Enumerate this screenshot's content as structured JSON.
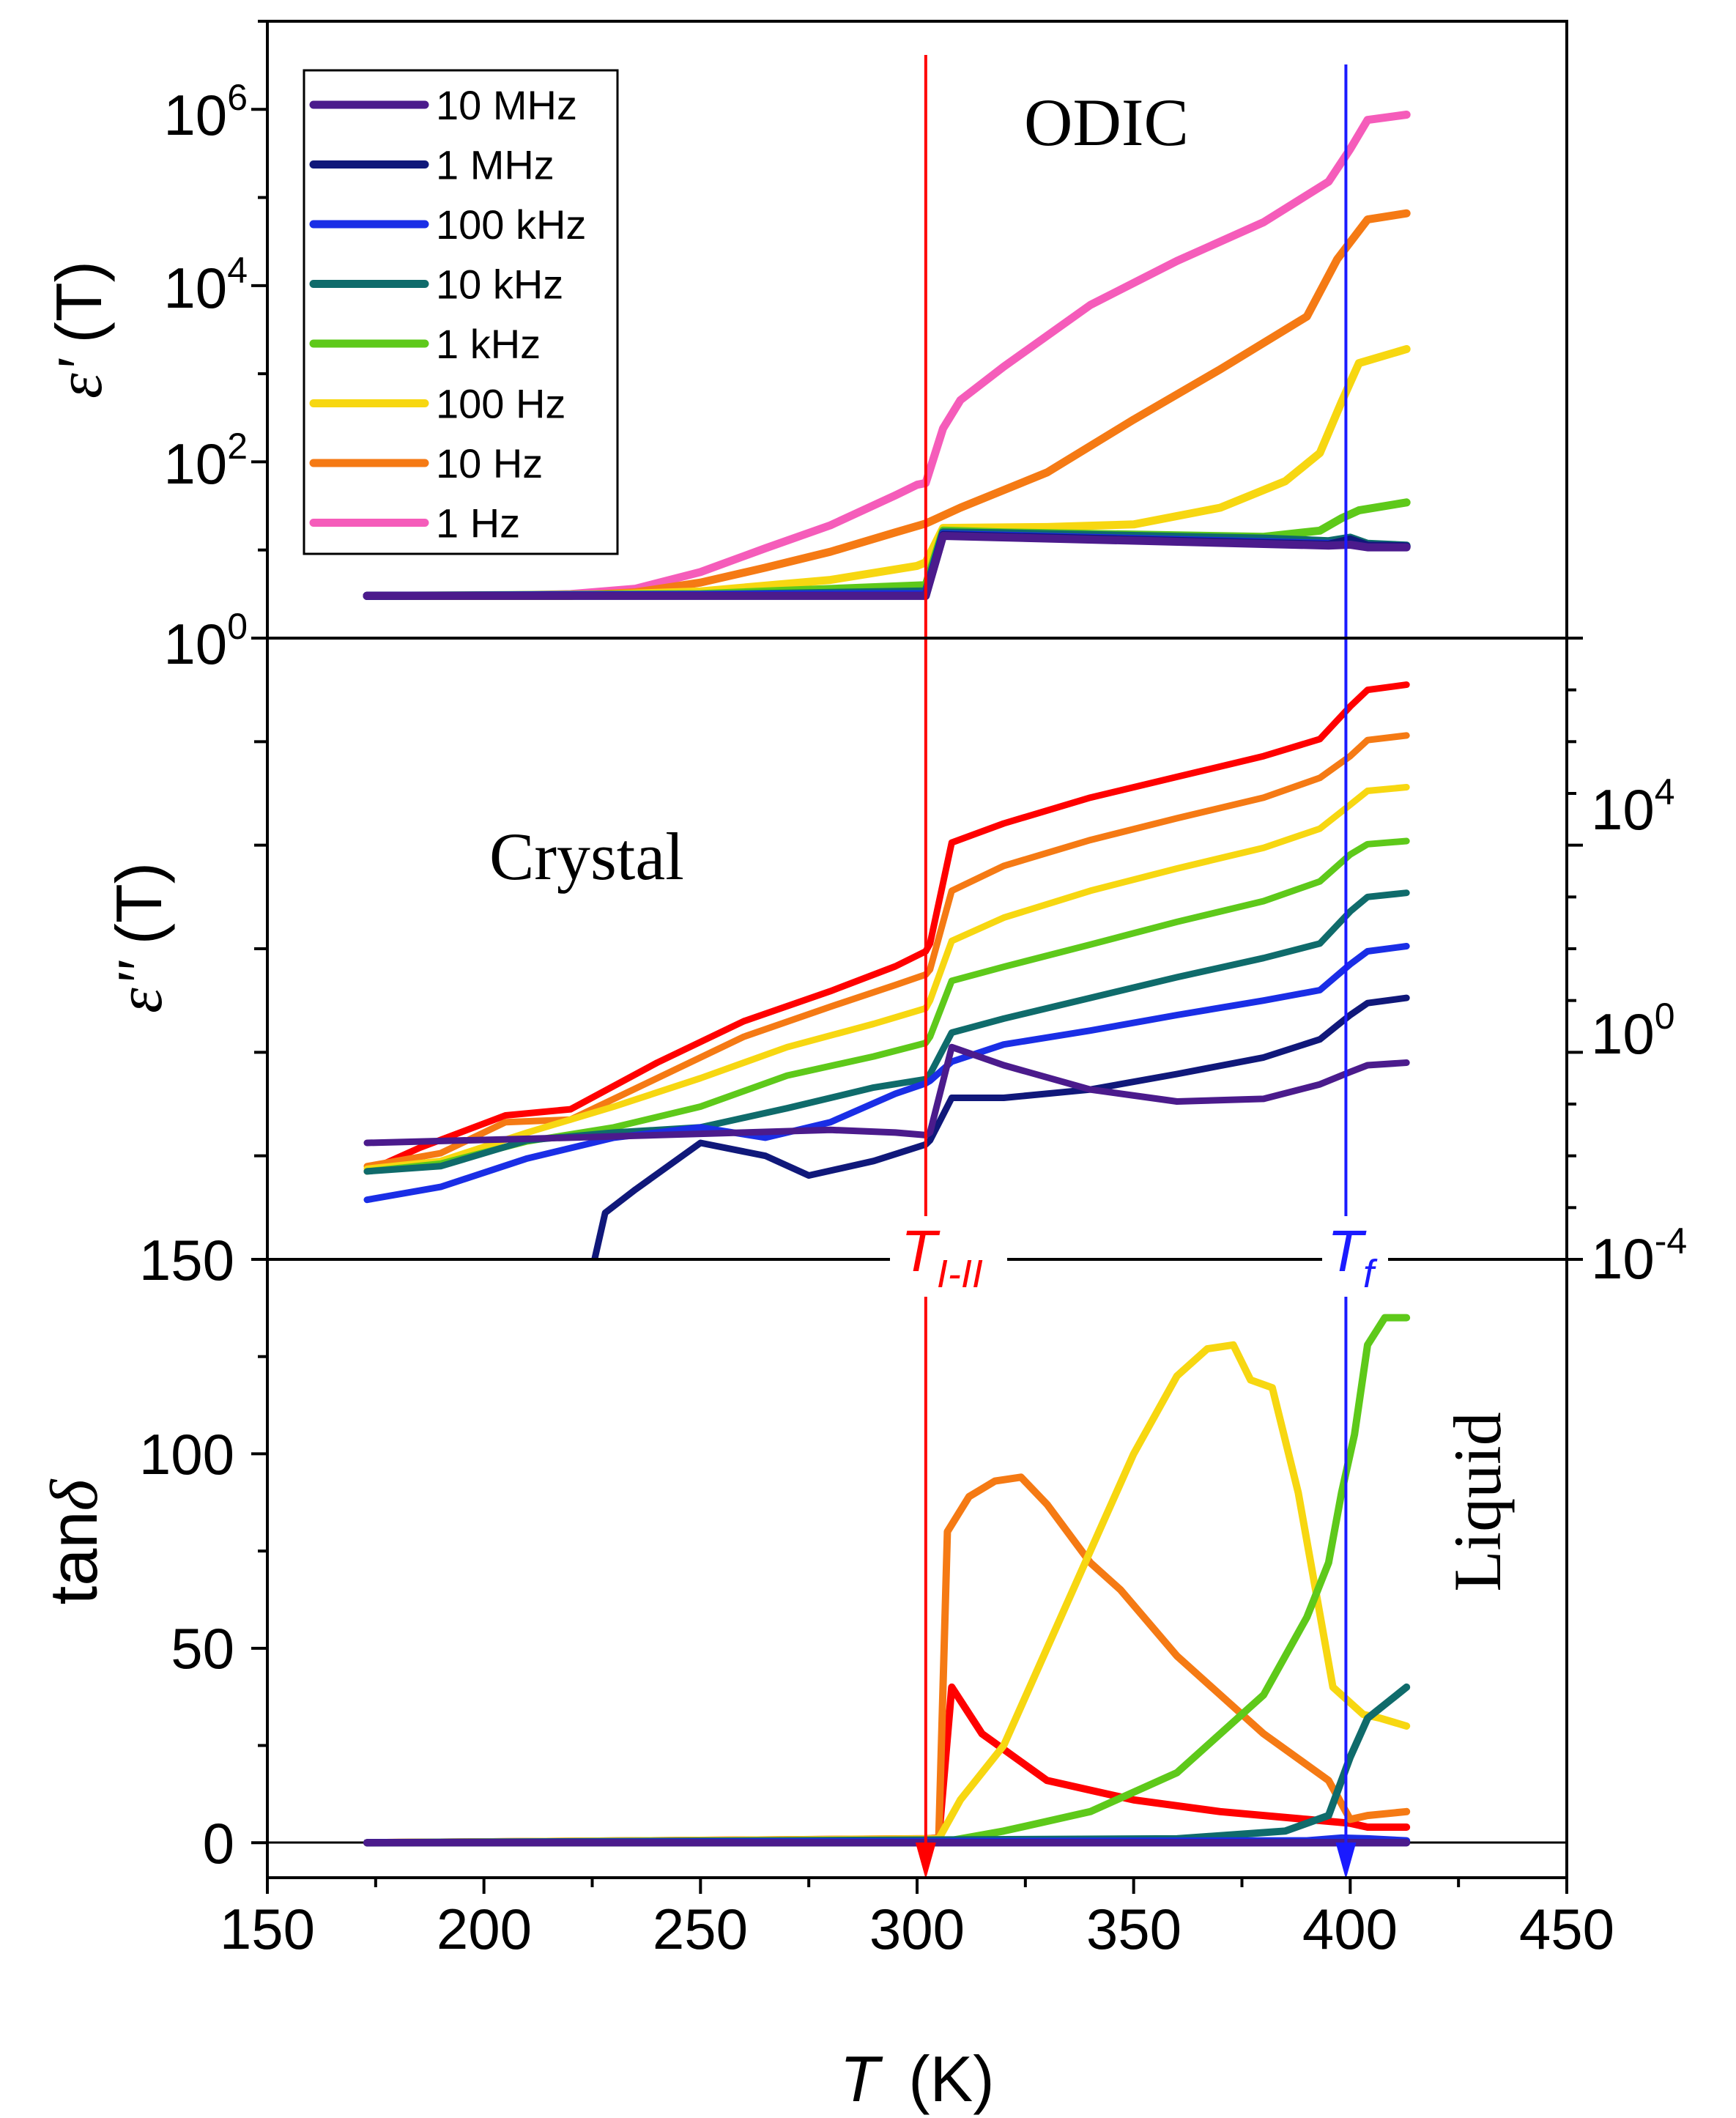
{
  "chart_data": {
    "type": "line",
    "x_axis": {
      "label_symbol": "T",
      "label_unit": "(K)",
      "range": [
        150,
        450
      ],
      "ticks": [
        "150",
        "200",
        "250",
        "300",
        "350",
        "400",
        "450"
      ]
    },
    "colors": {
      "10 MHz": "#4b1b8c",
      "1 MHz": "#10187a",
      "100 kHz": "#1a2ee6",
      "10 kHz": "#0f6b6b",
      "1 kHz": "#5ec91a",
      "100 Hz": "#f7d711",
      "10 Hz": "#f57a14",
      "1 Hz": "#f55cba",
      "eps2_top": "#ff0000",
      "transition_TI_II": "#ff0000",
      "transition_Tf": "#1a1aff"
    },
    "legend": {
      "entries": [
        "10 MHz",
        "1 MHz",
        "100 kHz",
        "10 kHz",
        "1 kHz",
        "100 Hz",
        "10 Hz",
        "1 Hz"
      ],
      "position": "top-left"
    },
    "annotations": {
      "odic": "ODIC",
      "crystal": "Crystal",
      "liquid": "Liquid",
      "t_i_ii_main": "T",
      "t_i_ii_sub": "I-II",
      "t_f_main": "T",
      "t_f_sub": "f"
    },
    "transitions": {
      "T_I_II": 302,
      "T_f": 399
    },
    "panels": [
      {
        "id": "epsilon_prime",
        "ylabel_symbol": "ε'",
        "ylabel_arg": "(T)",
        "yscale": "log",
        "ylim_log10": [
          0,
          7
        ],
        "ytick_labels": [
          {
            "base": "10",
            "exp": "0"
          },
          {
            "base": "10",
            "exp": "2"
          },
          {
            "base": "10",
            "exp": "4"
          },
          {
            "base": "10",
            "exp": "6"
          }
        ],
        "series": [
          {
            "name": "1 Hz",
            "x": [
              173,
              200,
              220,
              235,
              250,
              265,
              280,
              295,
              300,
              302,
              306,
              310,
              320,
              340,
              360,
              380,
              395,
              400,
              404,
              413
            ],
            "log10_y": [
              0.48,
              0.48,
              0.5,
              0.56,
              0.75,
              1.02,
              1.28,
              1.62,
              1.74,
              1.76,
              2.38,
              2.7,
              3.08,
              3.78,
              4.28,
              4.72,
              5.18,
              5.55,
              5.88,
              5.94
            ]
          },
          {
            "name": "10 Hz",
            "x": [
              173,
              220,
              235,
              250,
              265,
              280,
              295,
              302,
              310,
              330,
              350,
              370,
              390,
              397,
              404,
              413
            ],
            "log10_y": [
              0.48,
              0.48,
              0.52,
              0.63,
              0.8,
              0.98,
              1.2,
              1.3,
              1.48,
              1.88,
              2.48,
              3.05,
              3.65,
              4.3,
              4.75,
              4.82
            ]
          },
          {
            "name": "100 Hz",
            "x": [
              173,
              220,
              250,
              280,
              300,
              302,
              306,
              330,
              350,
              370,
              385,
              393,
              398,
              402,
              413
            ],
            "log10_y": [
              0.48,
              0.48,
              0.53,
              0.66,
              0.82,
              0.86,
              1.25,
              1.26,
              1.29,
              1.48,
              1.78,
              2.1,
              2.68,
              3.12,
              3.28
            ]
          },
          {
            "name": "1 kHz",
            "x": [
              173,
              250,
              302,
              306,
              320,
              380,
              393,
              398,
              402,
              413
            ],
            "log10_y": [
              0.48,
              0.5,
              0.6,
              1.22,
              1.2,
              1.15,
              1.22,
              1.36,
              1.45,
              1.54
            ]
          },
          {
            "name": "10 kHz",
            "x": [
              173,
              250,
              302,
              306,
              320,
              380,
              395,
              400,
              404,
              413
            ],
            "log10_y": [
              0.48,
              0.49,
              0.53,
              1.2,
              1.19,
              1.13,
              1.1,
              1.14,
              1.07,
              1.05
            ]
          },
          {
            "name": "100 kHz",
            "x": [
              173,
              302,
              306,
              395,
              400,
              404,
              413
            ],
            "log10_y": [
              0.48,
              0.5,
              1.18,
              1.07,
              1.1,
              1.05,
              1.04
            ]
          },
          {
            "name": "1 MHz",
            "x": [
              173,
              302,
              306,
              395,
              400,
              404,
              413
            ],
            "log10_y": [
              0.48,
              0.48,
              1.17,
              1.06,
              1.12,
              1.05,
              1.04
            ]
          },
          {
            "name": "10 MHz",
            "x": [
              173,
              302,
              306,
              395,
              400,
              404,
              413
            ],
            "log10_y": [
              0.48,
              0.48,
              1.16,
              1.05,
              1.06,
              1.03,
              1.03
            ]
          }
        ]
      },
      {
        "id": "epsilon_double_prime",
        "ylabel_symbol": "ε\"",
        "ylabel_arg": "(T)",
        "yscale": "log",
        "ylim_log10": [
          -4,
          8
        ],
        "ytick_labels": [
          {
            "base": "10",
            "exp": "-4"
          },
          {
            "base": "10",
            "exp": "0"
          },
          {
            "base": "10",
            "exp": "4"
          }
        ],
        "series": [
          {
            "name": "eps2_top",
            "x": [
              173,
              185,
              205,
              220,
              240,
              260,
              280,
              295,
              302,
              303,
              308,
              320,
              340,
              360,
              380,
              393,
              400,
              404,
              413
            ],
            "log10_y": [
              -2.3,
              -1.85,
              -1.22,
              -1.1,
              -0.2,
              0.6,
              1.18,
              1.66,
              1.95,
              2.1,
              4.05,
              4.42,
              4.92,
              5.32,
              5.72,
              6.05,
              6.68,
              7.0,
              7.1
            ]
          },
          {
            "name": "10 Hz",
            "x": [
              173,
              190,
              205,
              220,
              240,
              260,
              280,
              295,
              302,
              303,
              308,
              320,
              340,
              360,
              380,
              393,
              400,
              404,
              413
            ],
            "log10_y": [
              -2.2,
              -1.95,
              -1.35,
              -1.3,
              -0.5,
              0.3,
              0.88,
              1.3,
              1.5,
              1.6,
              3.12,
              3.6,
              4.1,
              4.52,
              4.92,
              5.3,
              5.72,
              6.03,
              6.12
            ]
          },
          {
            "name": "100 Hz",
            "x": [
              173,
              190,
              210,
              230,
              250,
              270,
              290,
              302,
              303,
              308,
              320,
              340,
              360,
              380,
              393,
              400,
              404,
              413
            ],
            "log10_y": [
              -2.25,
              -2.1,
              -1.55,
              -1.05,
              -0.5,
              0.1,
              0.55,
              0.85,
              1.0,
              2.15,
              2.6,
              3.12,
              3.55,
              3.95,
              4.32,
              4.78,
              5.05,
              5.12
            ]
          },
          {
            "name": "1 kHz",
            "x": [
              173,
              190,
              210,
              230,
              250,
              270,
              290,
              302,
              303,
              308,
              320,
              340,
              360,
              380,
              393,
              400,
              404,
              413
            ],
            "log10_y": [
              -2.3,
              -2.15,
              -1.72,
              -1.45,
              -1.05,
              -0.45,
              -0.08,
              0.18,
              0.3,
              1.38,
              1.65,
              2.08,
              2.52,
              2.92,
              3.3,
              3.82,
              4.02,
              4.08
            ]
          },
          {
            "name": "10 kHz",
            "x": [
              173,
              190,
              210,
              230,
              250,
              270,
              290,
              302,
              303,
              308,
              320,
              340,
              360,
              380,
              393,
              400,
              404,
              413
            ],
            "log10_y": [
              -2.3,
              -2.2,
              -1.7,
              -1.55,
              -1.45,
              -1.08,
              -0.68,
              -0.52,
              -0.42,
              0.38,
              0.65,
              1.05,
              1.45,
              1.82,
              2.1,
              2.72,
              3.0,
              3.08
            ]
          },
          {
            "name": "100 kHz",
            "x": [
              173,
              190,
              210,
              230,
              250,
              265,
              280,
              295,
              302,
              303,
              308,
              320,
              340,
              360,
              380,
              393,
              400,
              404,
              413
            ],
            "log10_y": [
              -2.85,
              -2.6,
              -2.05,
              -1.65,
              -1.45,
              -1.65,
              -1.35,
              -0.8,
              -0.6,
              -0.55,
              -0.18,
              0.15,
              0.42,
              0.72,
              1.0,
              1.2,
              1.7,
              1.95,
              2.05
            ]
          },
          {
            "name": "1 MHz",
            "x": [
              225,
              228,
              235,
              250,
              265,
              275,
              290,
              302,
              303,
              308,
              320,
              340,
              360,
              380,
              393,
              400,
              404,
              413
            ],
            "log10_y": [
              -4.2,
              -3.1,
              -2.65,
              -1.75,
              -2.0,
              -2.38,
              -2.1,
              -1.78,
              -1.7,
              -0.88,
              -0.88,
              -0.72,
              -0.42,
              -0.1,
              0.25,
              0.72,
              0.95,
              1.05
            ]
          },
          {
            "name": "10 MHz",
            "x": [
              173,
              220,
              260,
              280,
              295,
              302,
              303,
              308,
              320,
              340,
              360,
              380,
              393,
              400,
              404,
              413
            ],
            "log10_y": [
              -1.75,
              -1.65,
              -1.55,
              -1.5,
              -1.55,
              -1.6,
              -1.55,
              0.1,
              -0.25,
              -0.72,
              -0.95,
              -0.9,
              -0.62,
              -0.38,
              -0.25,
              -0.2
            ]
          }
        ]
      },
      {
        "id": "tan_delta",
        "ylabel_main": "tan",
        "ylabel_greek": "δ",
        "yscale": "linear",
        "ylim": [
          -9,
          150
        ],
        "ytick_labels": [
          "0",
          "50",
          "100",
          "150"
        ],
        "series": [
          {
            "name": "eps2_top",
            "x": [
              173,
              300,
              302,
              305,
              308,
              315,
              330,
              350,
              370,
              390,
              400,
              404,
              413
            ],
            "y": [
              0,
              1,
              1,
              1.2,
              40,
              28,
              16,
              11,
              8,
              6,
              5,
              4,
              4
            ]
          },
          {
            "name": "10 Hz",
            "x": [
              173,
              302,
              305,
              307,
              312,
              318,
              324,
              330,
              340,
              347,
              360,
              380,
              395,
              400,
              404,
              413
            ],
            "y": [
              0,
              1,
              1.2,
              80,
              89,
              93,
              94,
              87,
              72,
              65,
              48,
              28,
              16,
              6,
              7,
              8
            ]
          },
          {
            "name": "100 Hz",
            "x": [
              173,
              305,
              310,
              320,
              330,
              340,
              350,
              360,
              367,
              373,
              377,
              382,
              388,
              396,
              403,
              407,
              413
            ],
            "y": [
              0,
              1,
              11,
              25,
              50,
              75,
              100,
              120,
              127,
              128,
              119,
              117,
              90,
              40,
              33,
              32,
              30
            ]
          },
          {
            "name": "1 kHz",
            "x": [
              173,
              305,
              320,
              340,
              360,
              380,
              390,
              395,
              398,
              401,
              404,
              408,
              413
            ],
            "y": [
              0,
              0,
              3,
              8,
              18,
              38,
              58,
              72,
              90,
              105,
              128,
              135,
              135
            ]
          },
          {
            "name": "10 kHz",
            "x": [
              173,
              360,
              385,
              395,
              400,
              404,
              413
            ],
            "y": [
              0,
              1,
              3,
              7,
              22,
              32,
              40
            ]
          },
          {
            "name": "100 kHz",
            "x": [
              173,
              390,
              398,
              404,
              413
            ],
            "y": [
              0,
              0.5,
              1.2,
              1,
              0.5
            ]
          },
          {
            "name": "1 MHz",
            "x": [
              173,
              413
            ],
            "y": [
              0,
              0
            ]
          },
          {
            "name": "10 MHz",
            "x": [
              173,
              413
            ],
            "y": [
              0,
              0
            ]
          }
        ]
      }
    ]
  }
}
